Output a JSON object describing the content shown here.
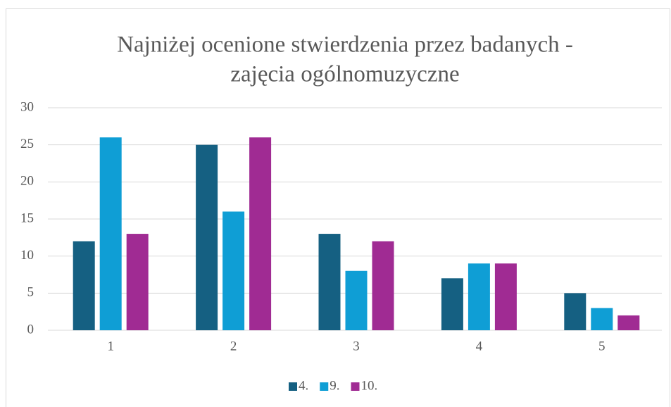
{
  "chart_data": {
    "type": "bar",
    "title": [
      "Najniżej ocenione stwierdzenia przez badanych -",
      "zajęcia ogólnomuzyczne"
    ],
    "categories": [
      "1",
      "2",
      "3",
      "4",
      "5"
    ],
    "series": [
      {
        "name": "4.",
        "color": "#156082",
        "values": [
          12,
          25,
          13,
          7,
          5
        ]
      },
      {
        "name": "9.",
        "color": "#0f9ed5",
        "values": [
          26,
          16,
          8,
          9,
          3
        ]
      },
      {
        "name": "10.",
        "color": "#a02b93",
        "values": [
          13,
          26,
          12,
          9,
          2
        ]
      }
    ],
    "ylim": [
      0,
      30
    ],
    "yticks": [
      0,
      5,
      10,
      15,
      20,
      25,
      30
    ],
    "grid": true,
    "legend": "bottom"
  }
}
